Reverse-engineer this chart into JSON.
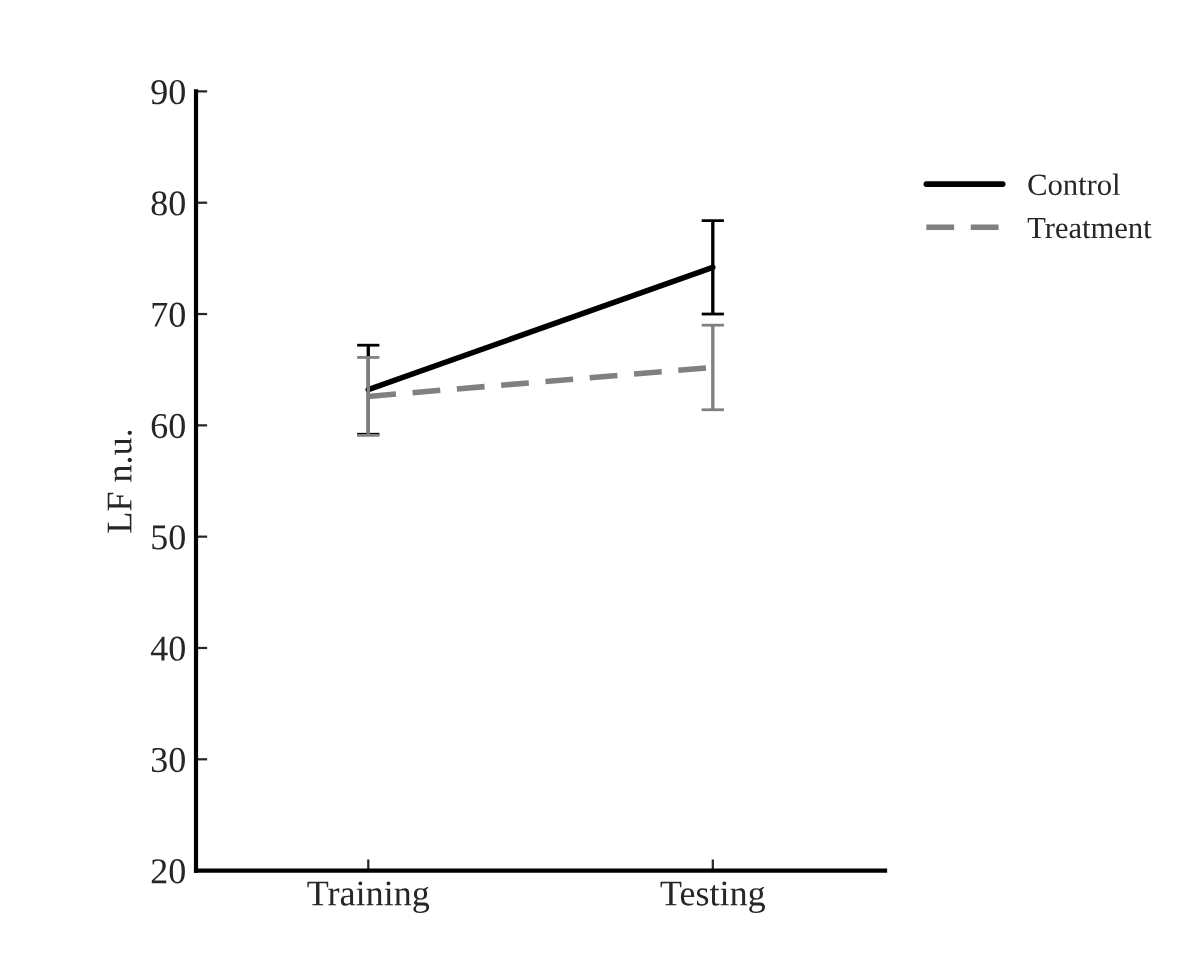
{
  "chart_data": {
    "type": "line",
    "ylabel": "LF n.u.",
    "categories": [
      "Training",
      "Testing"
    ],
    "series": [
      {
        "name": "Control",
        "color": "#000000",
        "line_style": "solid",
        "values": [
          63.2,
          74.2
        ],
        "errors": [
          4,
          4.2
        ]
      },
      {
        "name": "Treatment",
        "color": "#808080",
        "line_style": "dashed",
        "values": [
          62.6,
          65.2
        ],
        "errors": [
          3.5,
          3.8
        ]
      }
    ],
    "ylim": [
      20,
      90
    ],
    "yticks": [
      20,
      30,
      40,
      50,
      60,
      70,
      80,
      90
    ],
    "grid": false,
    "legend": "top right",
    "marker": "none"
  }
}
